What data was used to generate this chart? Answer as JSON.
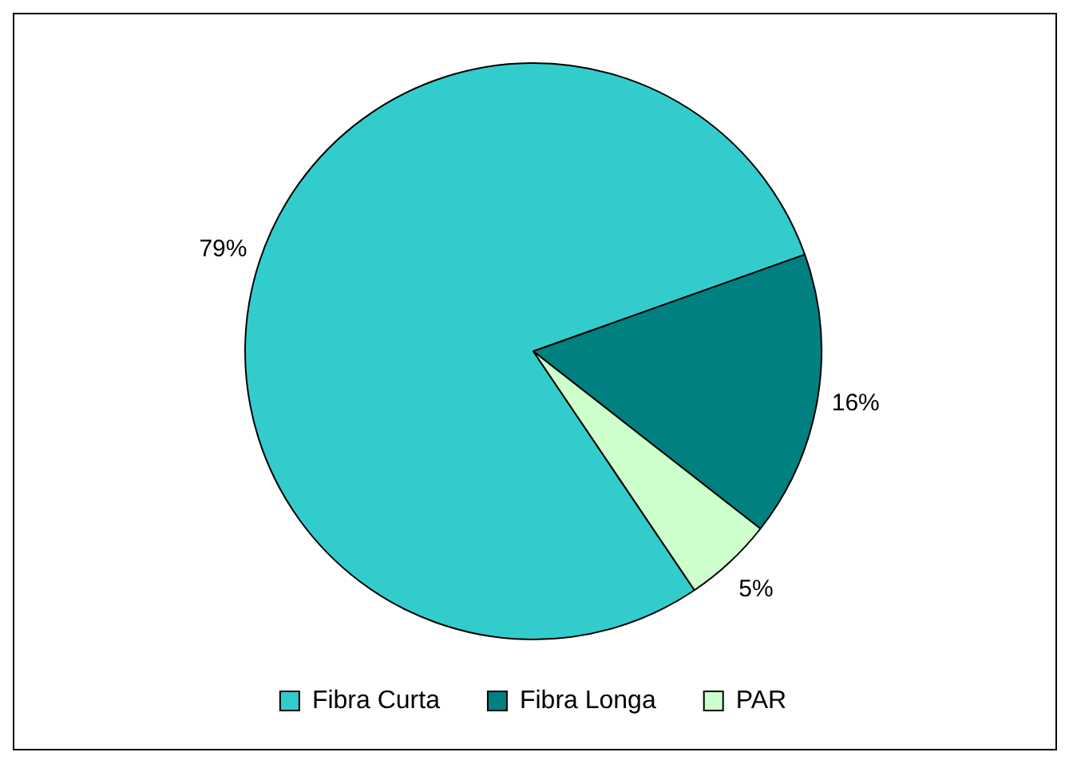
{
  "chart_data": {
    "type": "pie",
    "categories": [
      "Fibra Curta",
      "Fibra Longa",
      "PAR"
    ],
    "values": [
      79,
      16,
      5
    ],
    "colors": [
      "#33cccc",
      "#008080",
      "#ccffcc"
    ],
    "value_labels": [
      "79%",
      "16%",
      "5%"
    ],
    "legend": "bottom"
  }
}
